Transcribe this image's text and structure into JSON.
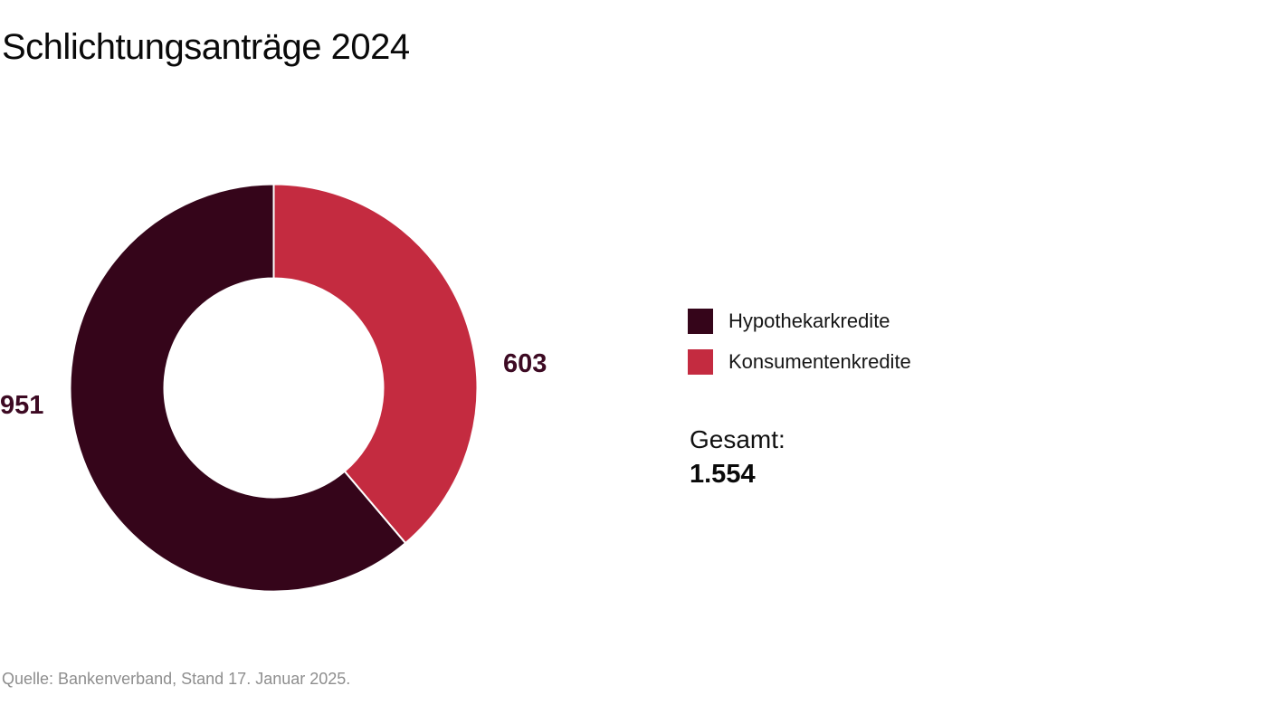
{
  "title": "Schlichtungsanträge 2024",
  "chart_data": {
    "type": "pie",
    "subtype": "donut",
    "title": "Schlichtungsanträge 2024",
    "categories": [
      "Hypothekarkredite",
      "Konsumentenkredite"
    ],
    "values": [
      951,
      603
    ],
    "value_labels": [
      "951",
      "603"
    ],
    "colors": [
      "#35051a",
      "#c42b40"
    ],
    "value_label_color": "#3d0a23",
    "total": 1554,
    "total_label": "Gesamt:",
    "total_value": "1.554",
    "start_angle_deg": 0,
    "direction": "clockwise",
    "draw_order": [
      1,
      0
    ],
    "legend_position": "right",
    "separator_color": "#ffffff"
  },
  "legend": {
    "items": [
      {
        "label": "Hypothekarkredite",
        "color": "#35051a"
      },
      {
        "label": "Konsumentenkredite",
        "color": "#c42b40"
      }
    ]
  },
  "footer": {
    "source": "Quelle: Bankenverband, Stand 17. Januar 2025."
  }
}
